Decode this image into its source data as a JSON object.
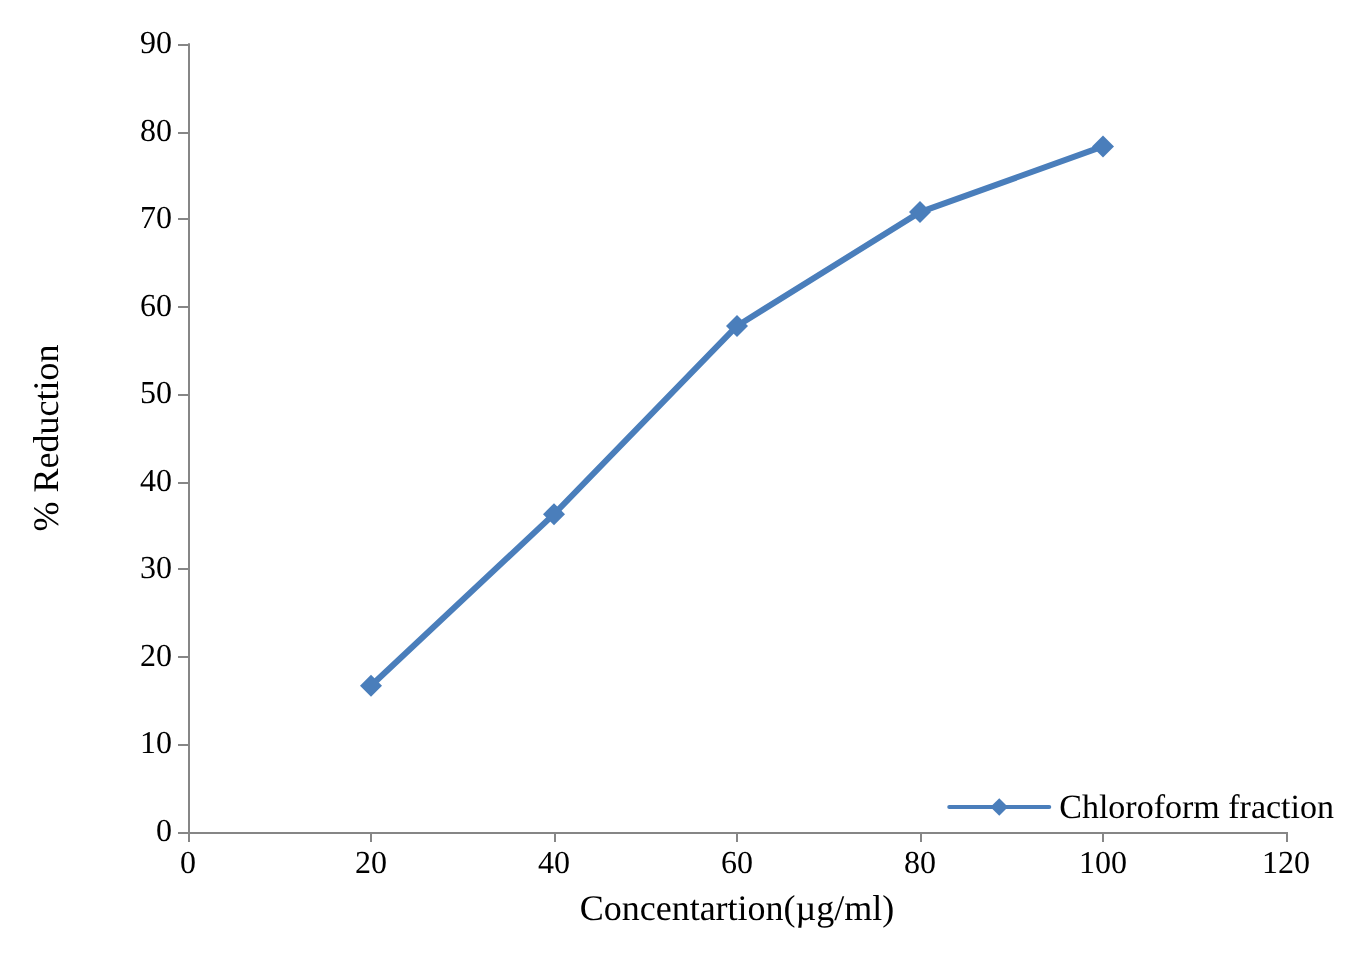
{
  "chart_data": {
    "type": "line",
    "xlabel": "Concentartion(µg/ml)",
    "ylabel": "% Reduction",
    "x": [
      20,
      40,
      60,
      80,
      100
    ],
    "series": [
      {
        "name": "Chloroform fraction",
        "color": "#4a7ebb",
        "values": [
          16.7,
          36.3,
          57.8,
          70.8,
          78.3
        ]
      }
    ],
    "xlim": [
      0,
      120
    ],
    "xticks": [
      0,
      20,
      40,
      60,
      80,
      100,
      120
    ],
    "ylim": [
      0,
      90
    ],
    "yticks": [
      0,
      10,
      20,
      30,
      40,
      50,
      60,
      70,
      80,
      90
    ],
    "grid": false,
    "legend": "bottom right",
    "marker": "diamond",
    "line_style": "solid"
  }
}
